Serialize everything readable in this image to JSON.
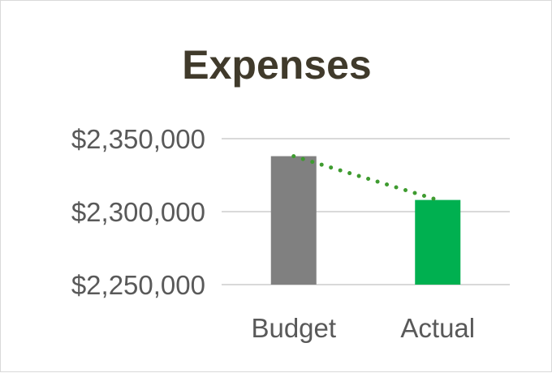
{
  "chart_data": {
    "type": "bar",
    "title": "Expenses",
    "xlabel": "",
    "ylabel": "",
    "categories": [
      "Budget",
      "Actual"
    ],
    "series": [
      {
        "values": [
          2338000,
          2308000
        ],
        "colors": [
          "#808080",
          "#00b050"
        ]
      }
    ],
    "trendline": {
      "style": "dotted",
      "color": "#3e9b2f",
      "values": [
        2338000,
        2308000
      ]
    },
    "ylim": [
      2250000,
      2350000
    ],
    "yticks": [
      2250000,
      2300000,
      2350000
    ],
    "ytick_labels": [
      "$2,250,000",
      "$2,300,000",
      "$2,350,000"
    ],
    "grid": true,
    "legend": "none"
  }
}
